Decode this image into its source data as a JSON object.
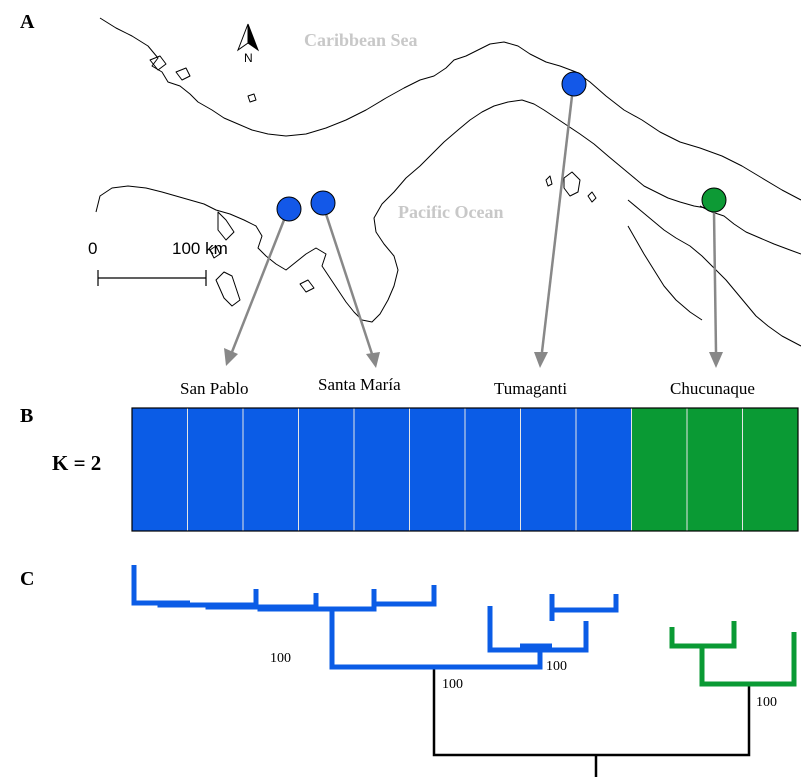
{
  "panels": {
    "a": "A",
    "b": "B",
    "c": "C"
  },
  "map": {
    "sea_labels": {
      "caribbean": "Caribbean Sea",
      "pacific": "Pacific Ocean"
    },
    "north_label": "N",
    "scale": {
      "start": "0",
      "end": "100 km"
    },
    "sites": [
      {
        "name": "San Pablo",
        "color": "#1358e8"
      },
      {
        "name": "Santa María",
        "color": "#1358e8"
      },
      {
        "name": "Tumaganti",
        "color": "#1358e8"
      },
      {
        "name": "Chucunaque",
        "color": "#0d9a35"
      }
    ]
  },
  "structure": {
    "k_label": "K = 2",
    "colors": {
      "cluster1": "#0b5ce6",
      "cluster2": "#0a9a34"
    },
    "individuals": [
      "cluster1",
      "cluster1",
      "cluster1",
      "cluster1",
      "cluster1",
      "cluster1",
      "cluster1",
      "cluster1",
      "cluster1",
      "cluster2",
      "cluster2",
      "cluster2"
    ]
  },
  "tree": {
    "colors": {
      "blue": "#0b5ce6",
      "green": "#0a9a34",
      "root": "#000000"
    },
    "support_labels": [
      "100",
      "100",
      "100",
      "100"
    ]
  }
}
